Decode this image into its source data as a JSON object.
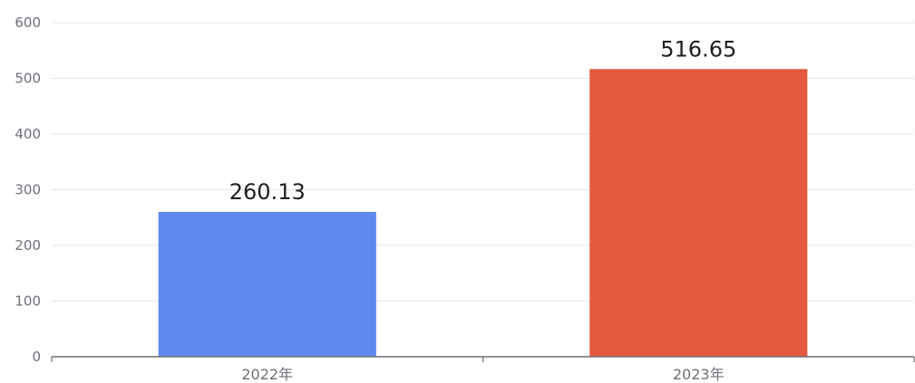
{
  "chart_data": {
    "type": "bar",
    "categories": [
      "2022年",
      "2023年"
    ],
    "values": [
      260.13,
      516.65
    ],
    "value_labels": [
      "260.13",
      "516.65"
    ],
    "bar_colors": [
      "#6088ee",
      "#e35940"
    ],
    "ylim": [
      0,
      600
    ],
    "yticks": [
      0,
      100,
      200,
      300,
      400,
      500,
      600
    ],
    "ytick_labels": [
      "0",
      "100",
      "200",
      "300",
      "400",
      "500",
      "600"
    ],
    "grid": true,
    "legend": "none"
  }
}
